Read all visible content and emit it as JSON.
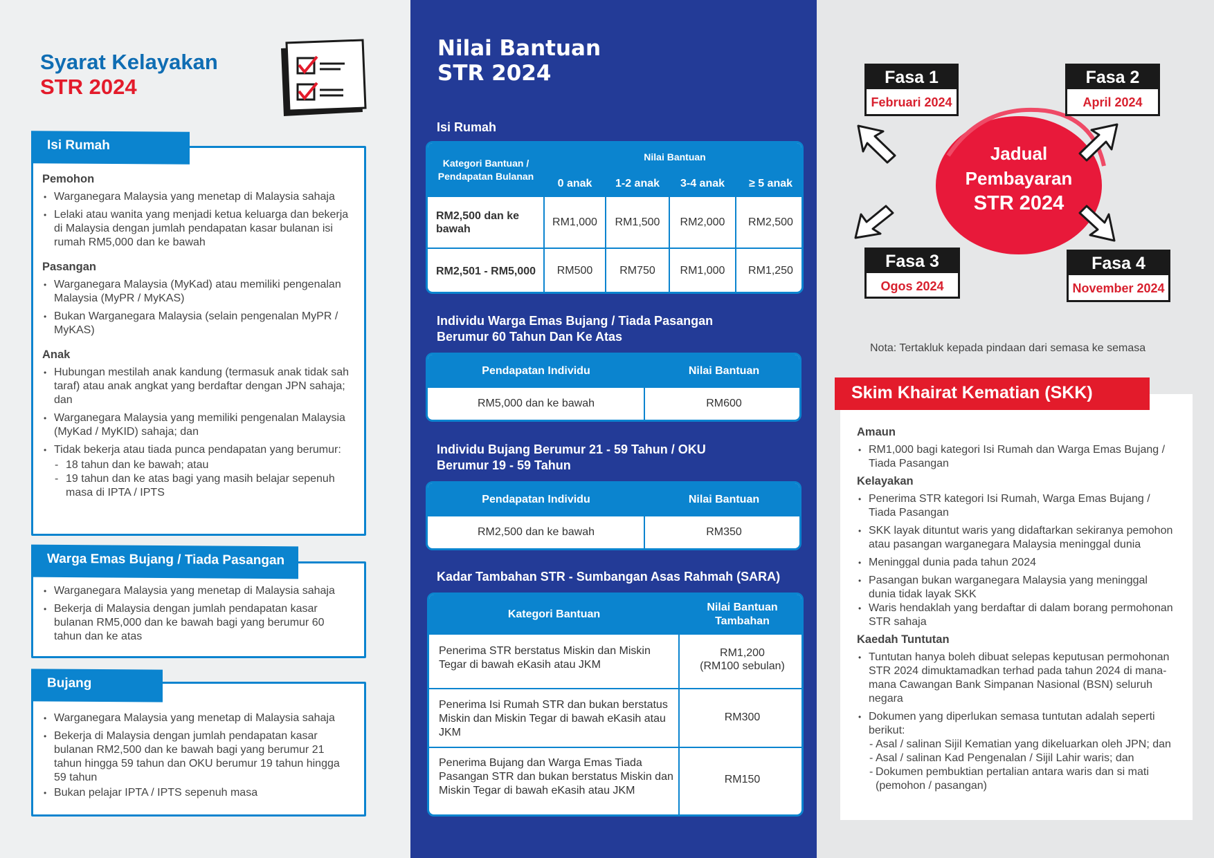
{
  "left": {
    "title_line1": "Syarat  Kelayakan",
    "title_line2": "STR 2024",
    "isi_rumah": {
      "tab": "Isi Rumah",
      "pemohon": {
        "heading": "Pemohon",
        "items": [
          "Warganegara Malaysia yang menetap di Malaysia sahaja",
          "Lelaki atau wanita yang menjadi ketua keluarga dan bekerja di Malaysia dengan jumlah pendapatan kasar bulanan isi rumah RM5,000 dan ke bawah"
        ]
      },
      "pasangan": {
        "heading": "Pasangan",
        "items": [
          "Warganegara Malaysia (MyKad) atau memiliki pengenalan Malaysia (MyPR / MyKAS)",
          "Bukan Warganegara Malaysia (selain pengenalan MyPR / MyKAS)"
        ]
      },
      "anak": {
        "heading": "Anak",
        "items": [
          "Hubungan mestilah anak kandung (termasuk anak tidak sah taraf) atau anak angkat yang berdaftar dengan JPN sahaja; dan",
          "Warganegara Malaysia yang memiliki pengenalan Malaysia (MyKad / MyKID) sahaja; dan",
          "Tidak bekerja atau tiada punca pendapatan yang berumur:"
        ],
        "sub_items": [
          "18 tahun dan ke bawah; atau",
          "19 tahun dan ke atas bagi yang masih belajar sepenuh masa di IPTA / IPTS"
        ]
      }
    },
    "warga_emas": {
      "tab": "Warga Emas Bujang / Tiada Pasangan",
      "items": [
        "Warganegara Malaysia yang menetap di Malaysia sahaja",
        "Bekerja di Malaysia dengan jumlah pendapatan kasar bulanan RM5,000 dan ke bawah bagi yang berumur 60 tahun dan ke atas"
      ]
    },
    "bujang": {
      "tab": "Bujang",
      "items": [
        "Warganegara Malaysia yang menetap di Malaysia sahaja",
        "Bekerja di Malaysia dengan jumlah pendapatan kasar bulanan RM2,500 dan ke bawah bagi yang berumur 21 tahun hingga 59 tahun dan OKU berumur 19 tahun hingga 59 tahun",
        "Bukan pelajar IPTA / IPTS sepenuh masa"
      ]
    }
  },
  "mid": {
    "title_line1": "Nilai Bantuan",
    "title_line2": "STR 2024",
    "t1": {
      "heading": "Isi Rumah",
      "col0": "Kategori Bantuan / Pendapatan Bulanan",
      "group": "Nilai Bantuan",
      "cols": [
        "0 anak",
        "1-2 anak",
        "3-4 anak",
        "≥ 5 anak"
      ],
      "rows": [
        {
          "label": "RM2,500 dan ke bawah",
          "values": [
            "RM1,000",
            "RM1,500",
            "RM2,000",
            "RM2,500"
          ]
        },
        {
          "label": "RM2,501 - RM5,000",
          "values": [
            "RM500",
            "RM750",
            "RM1,000",
            "RM1,250"
          ]
        }
      ]
    },
    "t2": {
      "heading": "Individu Warga Emas Bujang / Tiada Pasangan Berumur 60 Tahun Dan Ke Atas",
      "cols": [
        "Pendapatan Individu",
        "Nilai Bantuan"
      ],
      "row": [
        "RM5,000 dan ke bawah",
        "RM600"
      ]
    },
    "t3": {
      "heading": "Individu Bujang Berumur 21 - 59 Tahun / OKU Berumur 19 - 59 Tahun",
      "cols": [
        "Pendapatan Individu",
        "Nilai Bantuan"
      ],
      "row": [
        "RM2,500 dan ke bawah",
        "RM350"
      ]
    },
    "t4": {
      "heading": "Kadar Tambahan STR - Sumbangan Asas Rahmah (SARA)",
      "cols": [
        "Kategori Bantuan",
        "Nilai Bantuan Tambahan"
      ],
      "rows": [
        [
          "Penerima STR berstatus Miskin dan Miskin Tegar di bawah eKasih atau JKM",
          "RM1,200",
          "(RM100 sebulan)"
        ],
        [
          "Penerima Isi Rumah STR dan bukan berstatus Miskin dan Miskin Tegar di bawah eKasih atau JKM",
          "RM300",
          ""
        ],
        [
          "Penerima Bujang dan Warga Emas Tiada Pasangan STR dan bukan berstatus Miskin dan Miskin Tegar di bawah eKasih atau JKM",
          "RM150",
          ""
        ]
      ]
    }
  },
  "right": {
    "center": [
      "Jadual",
      "Pembayaran",
      "STR  2024"
    ],
    "phases": [
      {
        "name": "Fasa 1",
        "date": "Februari 2024"
      },
      {
        "name": "Fasa 2",
        "date": "April 2024"
      },
      {
        "name": "Fasa 3",
        "date": "Ogos 2024"
      },
      {
        "name": "Fasa 4",
        "date": "November 2024"
      }
    ],
    "note": "Nota: Tertakluk kepada pindaan dari semasa ke semasa",
    "skk": {
      "title": "Skim Khairat Kematian (SKK)",
      "amaun": {
        "heading": "Amaun",
        "items": [
          "RM1,000 bagi kategori Isi Rumah dan Warga Emas Bujang / Tiada Pasangan"
        ]
      },
      "kelayakan": {
        "heading": "Kelayakan",
        "items": [
          "Penerima STR kategori Isi Rumah, Warga Emas Bujang / Tiada Pasangan",
          "SKK layak dituntut waris yang didaftarkan sekiranya pemohon atau pasangan warganegara Malaysia meninggal dunia",
          "Meninggal dunia pada tahun 2024",
          "Pasangan bukan warganegara Malaysia yang meninggal dunia tidak layak SKK",
          "Waris hendaklah yang berdaftar di dalam borang permohonan STR sahaja"
        ]
      },
      "kaedah": {
        "heading": "Kaedah Tuntutan",
        "items": [
          "Tuntutan hanya boleh dibuat selepas keputusan permohonan STR 2024 dimuktamadkan terhad pada tahun 2024 di mana-mana Cawangan Bank Simpanan Nasional (BSN) seluruh negara",
          "Dokumen yang diperlukan semasa tuntutan adalah seperti berikut:"
        ],
        "sub_items": [
          "Asal / salinan Sijil Kematian yang dikeluarkan oleh JPN; dan",
          "Asal / salinan Kad Pengenalan / Sijil Lahir waris; dan",
          "Dokumen pembuktian pertalian antara waris dan si mati (pemohon / pasangan)"
        ]
      }
    }
  },
  "colors": {
    "blue_panel": "#233b97",
    "accent_blue": "#0b84cf",
    "red": "#e31b2b",
    "title_blue": "#0f6db3"
  }
}
